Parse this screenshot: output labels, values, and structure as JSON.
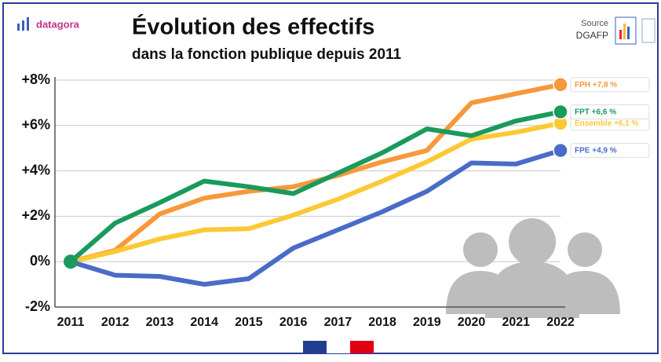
{
  "brand": "datagora",
  "source": {
    "label": "Source",
    "name": "DGAFP"
  },
  "chart_data": {
    "type": "line",
    "title": "Évolution des effectifs",
    "subtitle": "dans la fonction publique depuis 2011",
    "categories": [
      "2011",
      "2012",
      "2013",
      "2014",
      "2015",
      "2016",
      "2017",
      "2018",
      "2019",
      "2020",
      "2021",
      "2022"
    ],
    "series": [
      {
        "name": "FPH",
        "color": "#f7983a",
        "end_label": "+7,8 %",
        "values": [
          0,
          0.5,
          2.1,
          2.8,
          3.1,
          3.3,
          3.8,
          4.4,
          4.9,
          7.0,
          7.4,
          7.8
        ]
      },
      {
        "name": "Ensemble",
        "color": "#fcc934",
        "end_label": "+6,1 %",
        "values": [
          0,
          0.45,
          1.0,
          1.4,
          1.45,
          2.05,
          2.75,
          3.55,
          4.4,
          5.4,
          5.7,
          6.1
        ]
      },
      {
        "name": "FPE",
        "color": "#4a6cc8",
        "end_label": "+4,9 %",
        "values": [
          0,
          -0.6,
          -0.65,
          -1.0,
          -0.75,
          0.6,
          1.4,
          2.2,
          3.1,
          4.35,
          4.3,
          4.9
        ]
      },
      {
        "name": "FPT",
        "color": "#1a9a5c",
        "end_label": "+6,6 %",
        "values": [
          0,
          1.7,
          2.6,
          3.55,
          3.3,
          3.0,
          3.9,
          4.8,
          5.85,
          5.55,
          6.2,
          6.6
        ]
      }
    ],
    "ylim": [
      -2,
      8
    ],
    "yticks": [
      {
        "value": -2,
        "label": "-2%"
      },
      {
        "value": 0,
        "label": "0%"
      },
      {
        "value": 2,
        "label": "+2%"
      },
      {
        "value": 4,
        "label": "+4%"
      },
      {
        "value": 6,
        "label": "+6%"
      },
      {
        "value": 8,
        "label": "+8%"
      }
    ],
    "grid": true
  }
}
